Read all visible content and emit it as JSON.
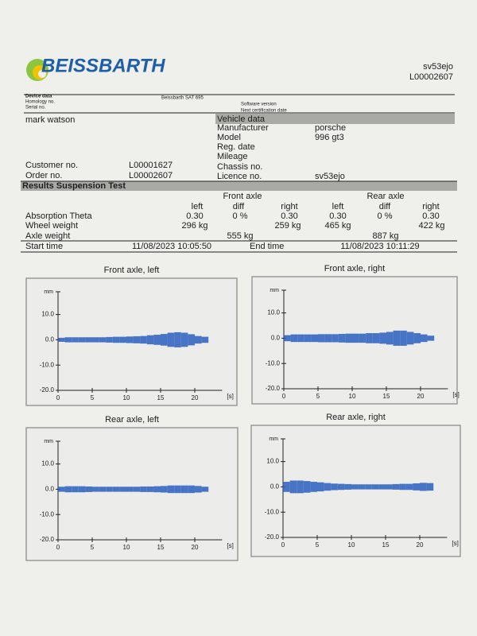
{
  "header": {
    "logo": "BEISSBARTH",
    "licence": "sv53ejo",
    "order": "L00002607"
  },
  "device": {
    "title": "Device data",
    "homology": "Homology no.",
    "serial": "Serial no.",
    "model": "Beissbarth SAT 695",
    "software": "Software version",
    "certification": "Next certification date"
  },
  "customer": {
    "name": "mark watson",
    "customer_no_label": "Customer no.",
    "customer_no": "L00001627",
    "order_no_label": "Order no.",
    "order_no": "L00002607"
  },
  "vehicle": {
    "title": "Vehicle data",
    "rows": [
      [
        "Manufacturer",
        "porsche"
      ],
      [
        "Model",
        "996 gt3"
      ],
      [
        "Reg. date"
      ],
      [
        "Mileage"
      ],
      [
        "Chassis no."
      ],
      [
        "Licence no.",
        "sv53ejo"
      ]
    ]
  },
  "results": {
    "title": "Results Suspension Test",
    "front": "Front axle",
    "rear": "Rear axle",
    "columns": [
      "left",
      "diff",
      "right",
      "left",
      "diff",
      "right"
    ],
    "absorption": {
      "label": "Absorption Theta",
      "cells": [
        "0.30",
        "0 %",
        "0.30",
        "0.30",
        "0 %",
        "0.30"
      ]
    },
    "wheel_weight": {
      "label": "Wheel weight",
      "front_left": "296 kg",
      "front_right": "259 kg",
      "rear_left": "465 kg",
      "rear_right": "422 kg"
    },
    "axle_weight": {
      "label": "Axle weight",
      "front": "555 kg",
      "rear": "887 kg"
    },
    "times": {
      "start_label": "Start time",
      "start": "11/08/2023 10:05:50",
      "end_label": "End time",
      "end": "11/08/2023 10:11:29"
    }
  },
  "chart_data": [
    {
      "type": "area",
      "title": "Front axle, left",
      "y_label": "mm",
      "x_label": "[s]",
      "color": "#2b5fbf",
      "xlim": [
        0,
        24
      ],
      "ylim": [
        -20,
        19
      ],
      "xticks": [
        0,
        5,
        10,
        15,
        20
      ],
      "yticks": [
        {
          "value": -20,
          "label": "-20.0"
        },
        {
          "value": -10,
          "label": "-10.0"
        },
        {
          "value": 0,
          "label": "0.0"
        },
        {
          "value": 10,
          "label": "10.0"
        }
      ],
      "x": [
        0.5,
        1.5,
        2.5,
        3.5,
        4.5,
        5.5,
        6.5,
        7.5,
        8.5,
        9.5,
        10.5,
        11.5,
        12.5,
        13.5,
        14.5,
        15.5,
        16.5,
        17.5,
        18.5,
        19.5,
        20.5,
        21.5
      ],
      "values": [
        0.8,
        1,
        1,
        1,
        1,
        1,
        1,
        1.1,
        1.2,
        1.2,
        1.3,
        1.4,
        1.5,
        1.8,
        2,
        2.3,
        2.8,
        3,
        2.8,
        2.2,
        1.5,
        1.2
      ]
    },
    {
      "type": "area",
      "title": "Front axle, right",
      "y_label": "mm",
      "x_label": "[s]",
      "color": "#2b5fbf",
      "xlim": [
        0,
        24
      ],
      "ylim": [
        -20,
        19
      ],
      "xticks": [
        0,
        5,
        10,
        15,
        20
      ],
      "yticks": [
        {
          "value": -20,
          "label": "-20.0"
        },
        {
          "value": -10,
          "label": "-10.0"
        },
        {
          "value": 0,
          "label": "0.0"
        },
        {
          "value": 10,
          "label": "10.0"
        }
      ],
      "x": [
        0.5,
        1.5,
        2.5,
        3.5,
        4.5,
        5.5,
        6.5,
        7.5,
        8.5,
        9.5,
        10.5,
        11.5,
        12.5,
        13.5,
        14.5,
        15.5,
        16.5,
        17.5,
        18.5,
        19.5,
        20.5,
        21.5
      ],
      "values": [
        1.2,
        1.5,
        1.5,
        1.5,
        1.5,
        1.6,
        1.6,
        1.6,
        1.7,
        1.8,
        1.8,
        1.8,
        2,
        2,
        2.2,
        2.5,
        3,
        3,
        2.5,
        2,
        1.5,
        1
      ]
    },
    {
      "type": "area",
      "title": "Rear axle, left",
      "y_label": "mm",
      "x_label": "[s]",
      "color": "#2b5fbf",
      "xlim": [
        0,
        24
      ],
      "ylim": [
        -20,
        19
      ],
      "xticks": [
        0,
        5,
        10,
        15,
        20
      ],
      "yticks": [
        {
          "value": -20,
          "label": "-20.0"
        },
        {
          "value": -10,
          "label": "-10.0"
        },
        {
          "value": 0,
          "label": "0.0"
        },
        {
          "value": 10,
          "label": "10.0"
        }
      ],
      "x": [
        0.5,
        1.5,
        2.5,
        3.5,
        4.5,
        5.5,
        6.5,
        7.5,
        8.5,
        9.5,
        10.5,
        11.5,
        12.5,
        13.5,
        14.5,
        15.5,
        16.5,
        17.5,
        18.5,
        19.5,
        20.5,
        21.5
      ],
      "values": [
        1,
        1.2,
        1.2,
        1.2,
        1.1,
        1,
        1,
        1,
        1,
        1,
        1,
        1,
        1.1,
        1.1,
        1.2,
        1.3,
        1.5,
        1.5,
        1.5,
        1.5,
        1.3,
        1
      ]
    },
    {
      "type": "area",
      "title": "Rear axle, right",
      "y_label": "mm",
      "x_label": "[s]",
      "color": "#2b5fbf",
      "xlim": [
        0,
        24
      ],
      "ylim": [
        -20,
        19
      ],
      "xticks": [
        0,
        5,
        10,
        15,
        20
      ],
      "yticks": [
        {
          "value": -20,
          "label": "-20.0"
        },
        {
          "value": -10,
          "label": "-10.0"
        },
        {
          "value": 0,
          "label": "0.0"
        },
        {
          "value": 10,
          "label": "10.0"
        }
      ],
      "x": [
        0.5,
        1.5,
        2.5,
        3.5,
        4.5,
        5.5,
        6.5,
        7.5,
        8.5,
        9.5,
        10.5,
        11.5,
        12.5,
        13.5,
        14.5,
        15.5,
        16.5,
        17.5,
        18.5,
        19.5,
        20.5,
        21.5
      ],
      "values": [
        2,
        2.5,
        2.5,
        2.3,
        2,
        1.8,
        1.5,
        1.3,
        1.2,
        1.1,
        1,
        1,
        1,
        1,
        1,
        1,
        1.1,
        1.2,
        1.2,
        1.4,
        1.6,
        1.5
      ]
    }
  ]
}
